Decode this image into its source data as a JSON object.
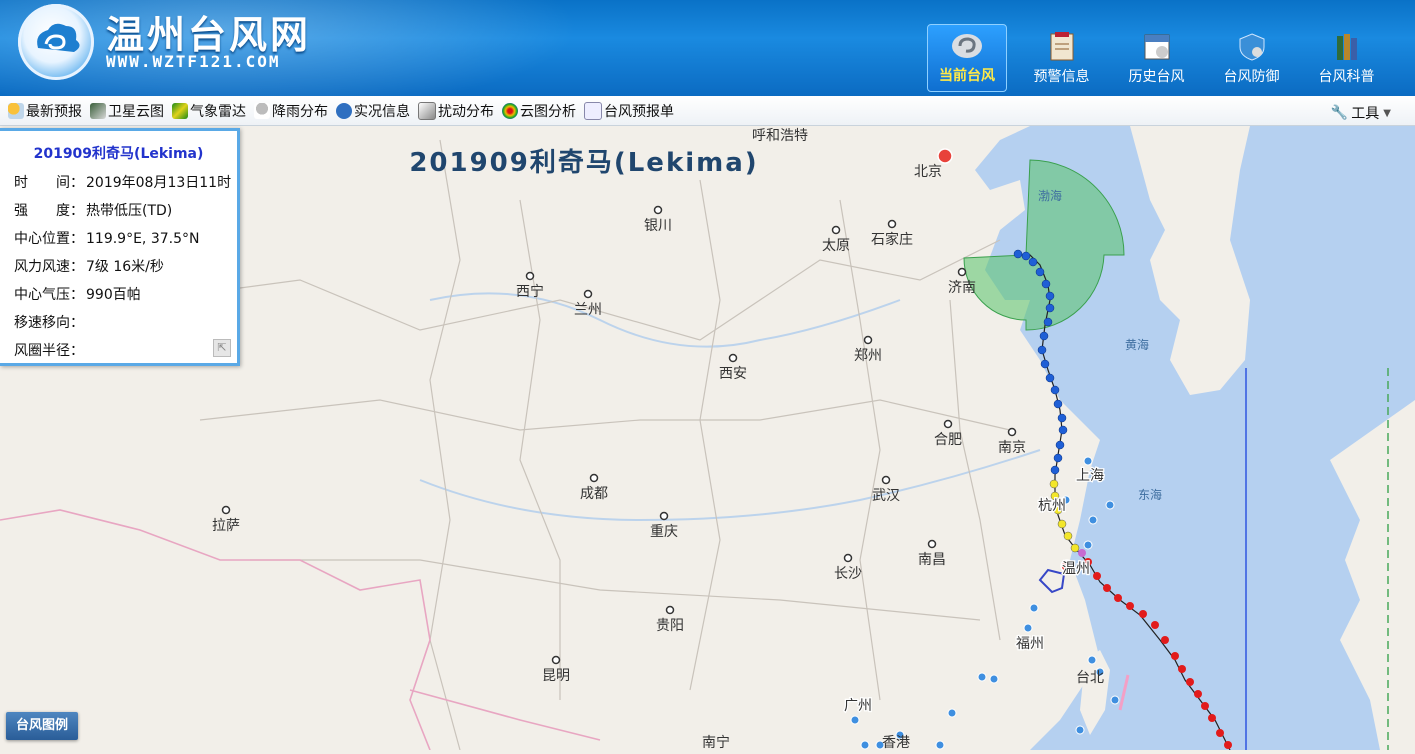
{
  "header": {
    "title": "温州台风网",
    "url": "WWW.WZTF121.COM",
    "nav": [
      {
        "label": "当前台风",
        "active": true,
        "icon": "typhoon-icon"
      },
      {
        "label": "预警信息",
        "active": false,
        "icon": "warning-doc-icon"
      },
      {
        "label": "历史台风",
        "active": false,
        "icon": "calendar-icon"
      },
      {
        "label": "台风防御",
        "active": false,
        "icon": "shield-icon"
      },
      {
        "label": "台风科普",
        "active": false,
        "icon": "books-icon"
      }
    ]
  },
  "toolbar": {
    "items": [
      {
        "label": "最新预报",
        "icon": "sun-cloud-icon"
      },
      {
        "label": "卫星云图",
        "icon": "satellite-image-icon"
      },
      {
        "label": "气象雷达",
        "icon": "radar-icon"
      },
      {
        "label": "降雨分布",
        "icon": "rain-cloud-icon"
      },
      {
        "label": "实况信息",
        "icon": "live-info-icon"
      },
      {
        "label": "扰动分布",
        "icon": "disturbance-icon"
      },
      {
        "label": "云图分析",
        "icon": "cloud-analysis-icon"
      },
      {
        "label": "台风预报单",
        "icon": "report-doc-icon"
      }
    ],
    "tools_label": "工具"
  },
  "map": {
    "title": "201909利奇马(Lekima)",
    "cities": [
      "呼和浩特",
      "北京",
      "银川",
      "太原",
      "石家庄",
      "济南",
      "西宁",
      "兰州",
      "郑州",
      "西安",
      "合肥",
      "南京",
      "上海",
      "杭州",
      "成都",
      "重庆",
      "武汉",
      "拉萨",
      "长沙",
      "南昌",
      "温州",
      "福州",
      "贵阳",
      "昆明",
      "台北",
      "广州",
      "南宁",
      "香港"
    ],
    "seas": [
      "渤海",
      "黄海",
      "东海"
    ],
    "highlight_labels": [
      "上海",
      "杭州",
      "温州",
      "福州",
      "广州"
    ],
    "colors": {
      "track_td": "#1f5fd6",
      "track_ts": "#f3e62a",
      "track_sty": "#e21b1b",
      "wind_circle": "#57c26a",
      "warn_line_24h": "#2f56e0",
      "warn_line_48h": "#49a85a"
    }
  },
  "info_panel": {
    "title": "201909利奇马(Lekima)",
    "rows": [
      {
        "label": "时　　间：",
        "value": "2019年08月13日11时"
      },
      {
        "label": "强　　度：",
        "value": "热带低压(TD)"
      },
      {
        "label": "中心位置：",
        "value": "119.9°E, 37.5°N"
      },
      {
        "label": "风力风速：",
        "value": "7级 16米/秒"
      },
      {
        "label": "中心气压：",
        "value": "990百帕"
      },
      {
        "label": "移速移向：",
        "value": ""
      },
      {
        "label": "风圈半径：",
        "value": ""
      }
    ]
  },
  "legend_button": "台风图例"
}
